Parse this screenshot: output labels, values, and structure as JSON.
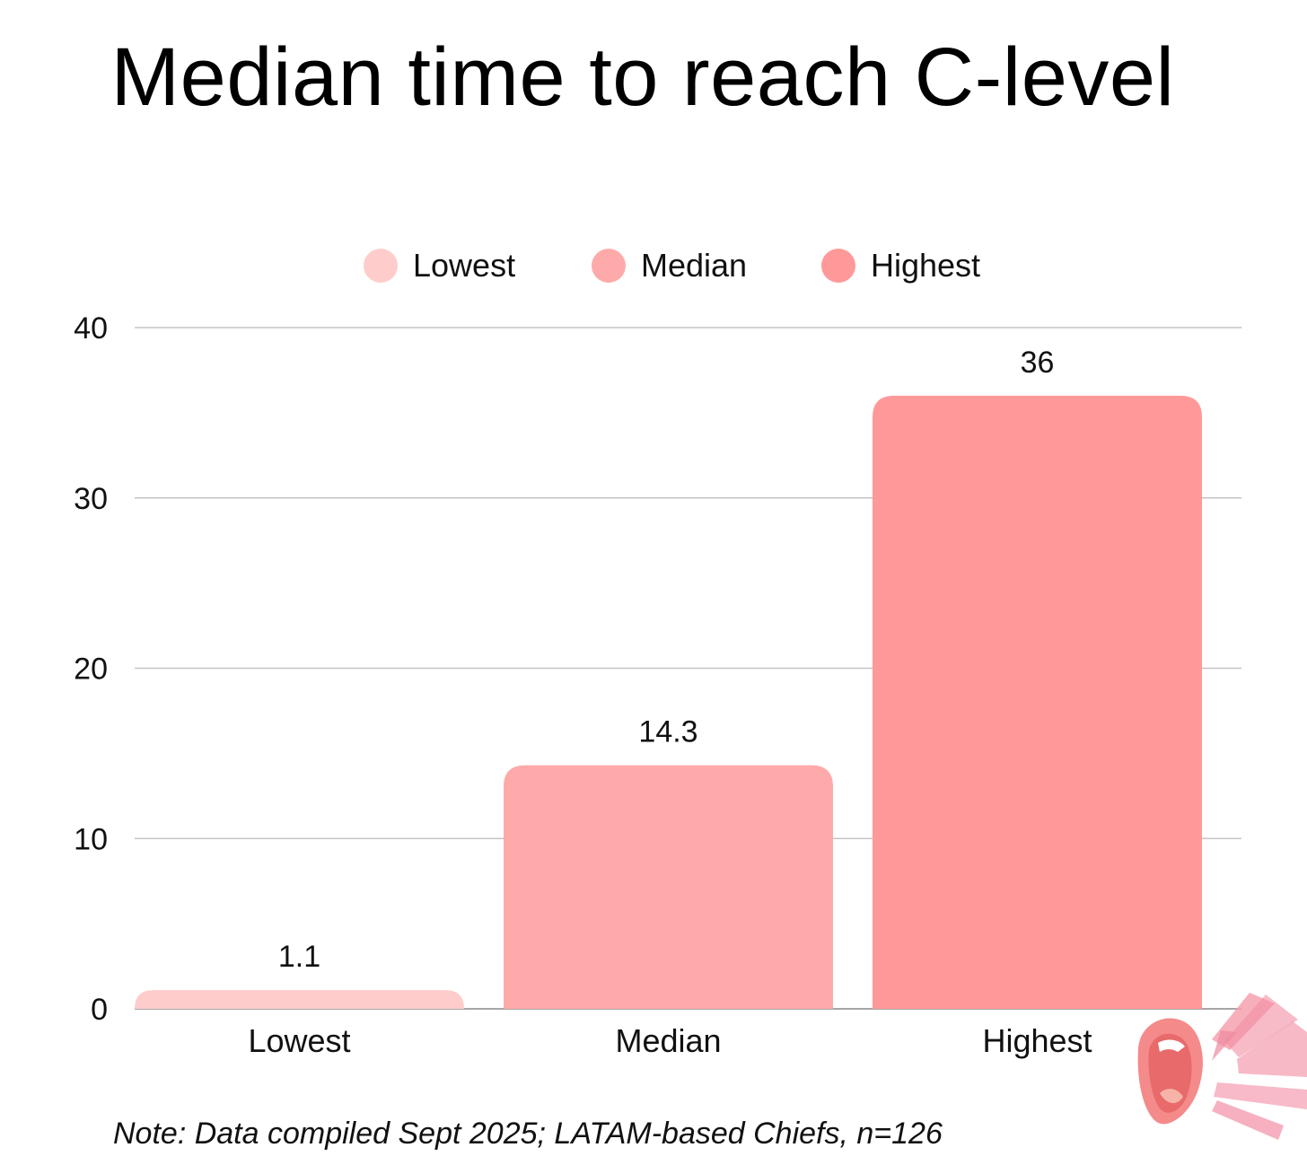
{
  "chart_data": {
    "type": "bar",
    "title": "Median time to reach C-level",
    "categories": [
      "Lowest",
      "Median",
      "Highest"
    ],
    "values": [
      1.1,
      14.3,
      36
    ],
    "data_labels": [
      "1.1",
      "14.3",
      "36"
    ],
    "colors": [
      "#ffcccc",
      "#ffaaaa",
      "#ff9999"
    ],
    "ylim": [
      0,
      40
    ],
    "yticks": [
      0,
      10,
      20,
      30,
      40
    ],
    "grid": true,
    "legend": {
      "placement": "top-center",
      "entries": [
        "Lowest",
        "Median",
        "Highest"
      ]
    },
    "xlabel": "",
    "ylabel": ""
  },
  "note": "Note: Data compiled Sept 2025; LATAM-based Chiefs, n=126",
  "decoration": {
    "icon": "shouting-mouth-icon"
  }
}
